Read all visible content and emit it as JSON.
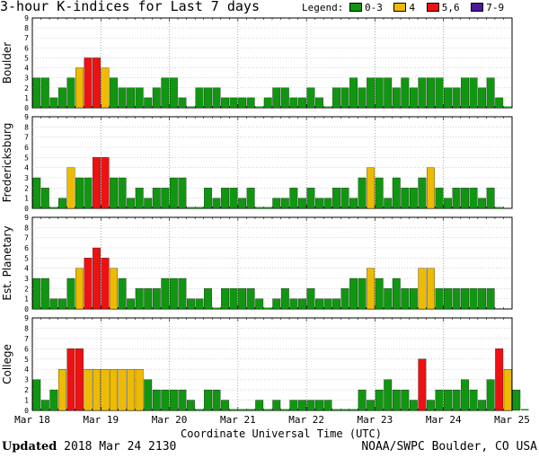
{
  "header": {
    "title": "3-hour K-indices for Last 7 days"
  },
  "legend": {
    "label": "Legend:",
    "items": [
      {
        "label": "0-3",
        "color": "#119611"
      },
      {
        "label": "4",
        "color": "#eebb00"
      },
      {
        "label": "5,6",
        "color": "#ee1111"
      },
      {
        "label": "7-9",
        "color": "#4a1a99"
      }
    ]
  },
  "footer": {
    "updated_label": "Updated",
    "updated_value": "2018 Mar 24 2130",
    "credit": "NOAA/SWPC Boulder, CO USA"
  },
  "chart_data": {
    "type": "bar",
    "xlabel": "Coordinate Universal Time (UTC)",
    "x_ticks": [
      "Mar 18",
      "Mar 19",
      "Mar 20",
      "Mar 21",
      "Mar 22",
      "Mar 23",
      "Mar 24",
      "Mar 25"
    ],
    "ylim": [
      0,
      9
    ],
    "y_ticks": [
      0,
      1,
      2,
      3,
      4,
      5,
      6,
      7,
      8,
      9
    ],
    "bins_per_day": 8,
    "panels": [
      {
        "name": "Boulder",
        "values": [
          3,
          3,
          1,
          2,
          3,
          4,
          5,
          5,
          4,
          3,
          2,
          2,
          2,
          1,
          2,
          3,
          3,
          1,
          0,
          2,
          2,
          2,
          1,
          1,
          1,
          1,
          0,
          1,
          2,
          2,
          1,
          1,
          2,
          1,
          0,
          2,
          2,
          3,
          2,
          3,
          3,
          3,
          2,
          3,
          2,
          3,
          3,
          3,
          2,
          2,
          3,
          3,
          2,
          3,
          1,
          0
        ]
      },
      {
        "name": "Fredericksburg",
        "values": [
          3,
          2,
          0,
          1,
          4,
          3,
          3,
          5,
          5,
          3,
          3,
          1,
          2,
          1,
          2,
          2,
          3,
          3,
          0,
          0,
          2,
          1,
          2,
          2,
          1,
          2,
          0,
          0,
          1,
          1,
          2,
          1,
          2,
          1,
          1,
          2,
          2,
          1,
          3,
          4,
          3,
          1,
          3,
          2,
          2,
          3,
          4,
          2,
          1,
          2,
          2,
          2,
          1,
          2,
          0
        ]
      },
      {
        "name": "Est. Planetary",
        "values": [
          3,
          3,
          1,
          1,
          3,
          4,
          5,
          6,
          5,
          4,
          3,
          1,
          2,
          2,
          2,
          3,
          3,
          3,
          1,
          1,
          2,
          0,
          2,
          2,
          2,
          2,
          1,
          0,
          1,
          2,
          1,
          1,
          2,
          1,
          1,
          1,
          2,
          3,
          3,
          4,
          3,
          2,
          3,
          2,
          2,
          4,
          4,
          2,
          2,
          2,
          2,
          2,
          2,
          2
        ]
      },
      {
        "name": "College",
        "values": [
          3,
          1,
          2,
          4,
          6,
          6,
          4,
          4,
          4,
          4,
          4,
          4,
          4,
          3,
          2,
          2,
          2,
          2,
          1,
          0,
          2,
          2,
          1,
          0,
          0,
          0,
          1,
          0,
          1,
          0,
          1,
          1,
          1,
          1,
          1,
          0,
          0,
          0,
          2,
          1,
          2,
          3,
          2,
          2,
          1,
          5,
          1,
          2,
          2,
          2,
          3,
          2,
          1,
          3,
          6,
          4,
          2,
          0
        ]
      }
    ]
  }
}
